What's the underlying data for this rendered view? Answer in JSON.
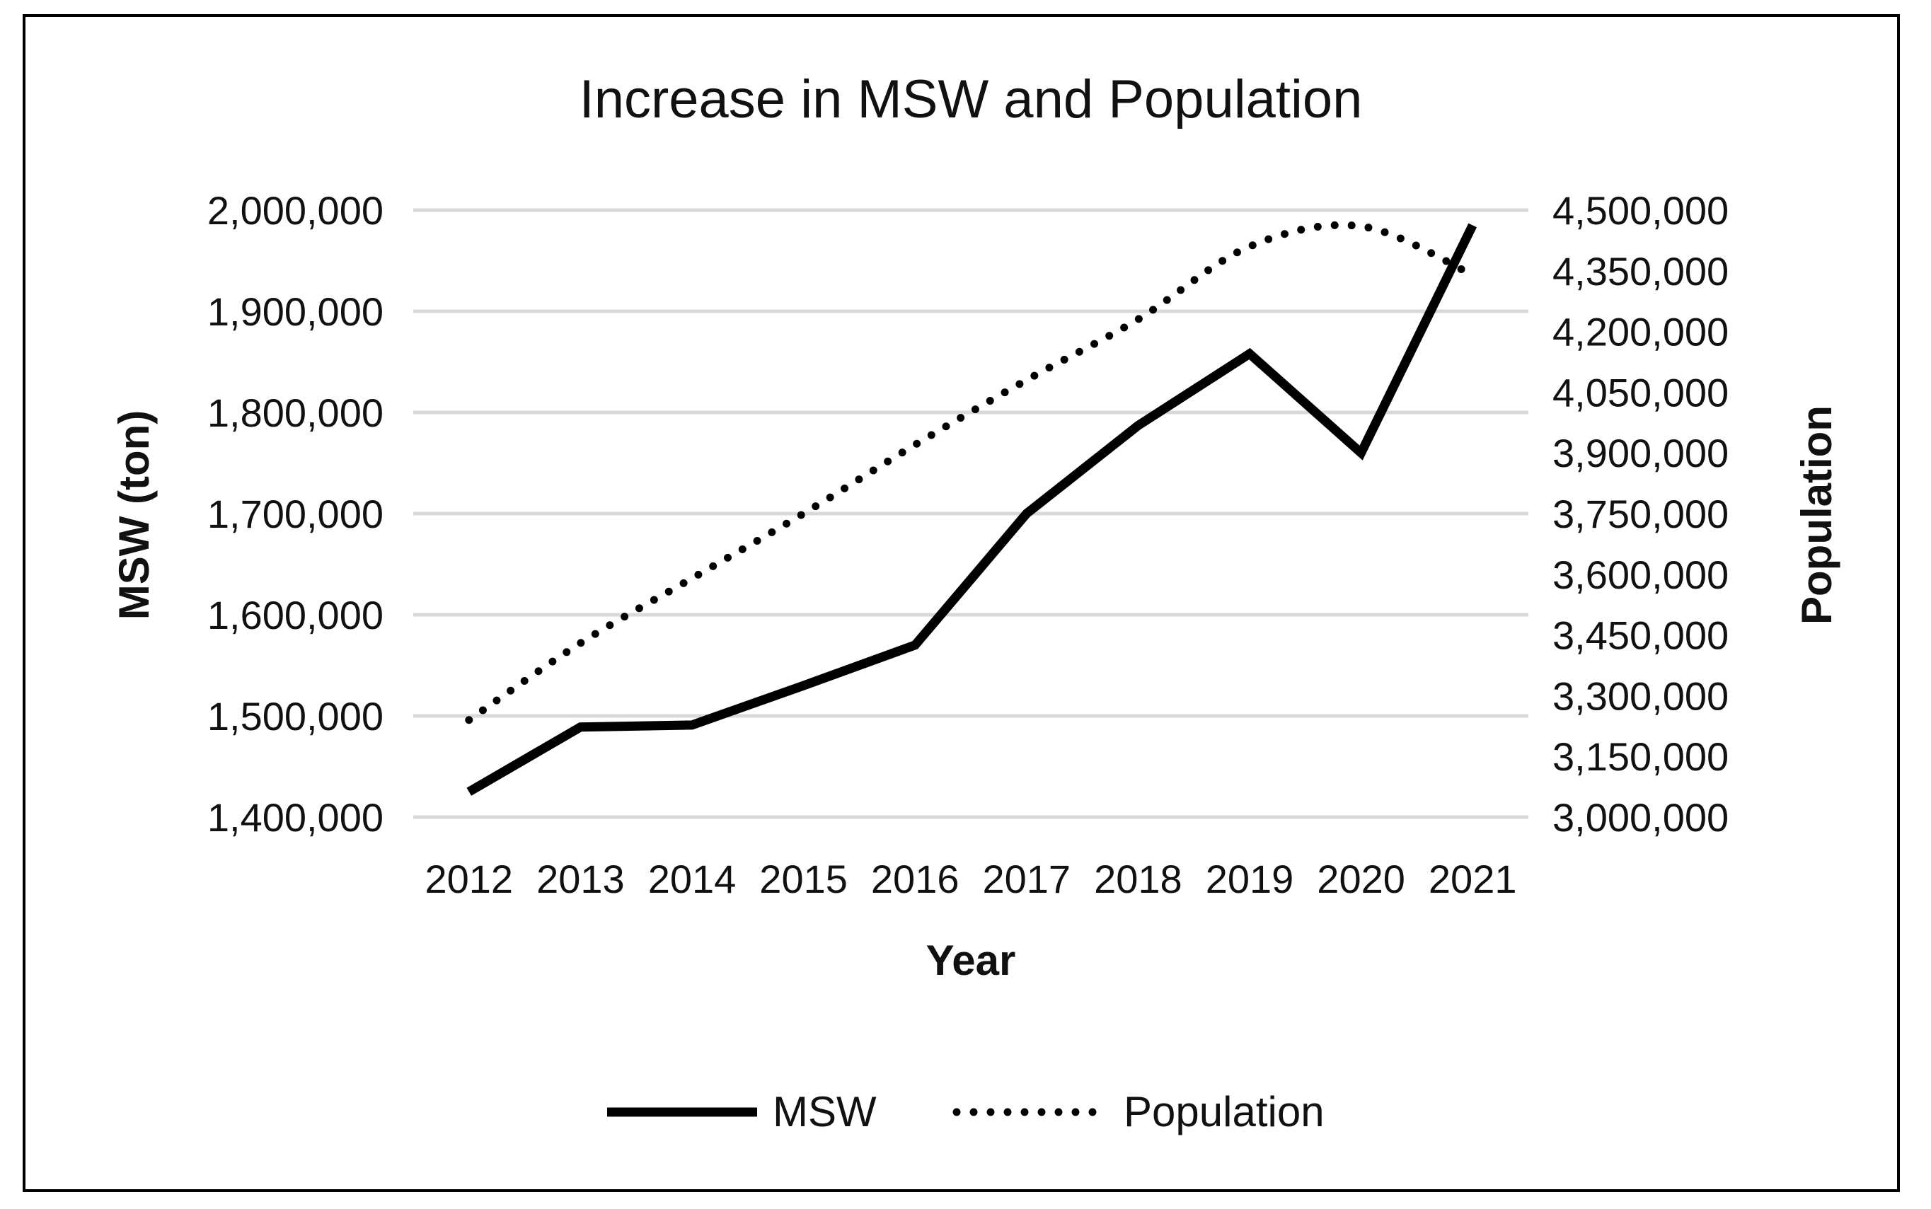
{
  "chart_data": {
    "type": "line",
    "title": "Increase in MSW and Population",
    "xlabel": "Year",
    "ylabel": "MSW (ton)",
    "y2label": "Population",
    "categories": [
      "2012",
      "2013",
      "2014",
      "2015",
      "2016",
      "2017",
      "2018",
      "2019",
      "2020",
      "2021"
    ],
    "ylim": [
      1400000,
      2000000
    ],
    "y_ticks": [
      1400000,
      1500000,
      1600000,
      1700000,
      1800000,
      1900000,
      2000000
    ],
    "y_tick_labels": [
      "1,400,000",
      "1,500,000",
      "1,600,000",
      "1,700,000",
      "1,800,000",
      "1,900,000",
      "2,000,000"
    ],
    "y2lim": [
      3000000,
      4500000
    ],
    "y2_ticks": [
      3000000,
      3150000,
      3300000,
      3450000,
      3600000,
      3750000,
      3900000,
      4050000,
      4200000,
      4350000,
      4500000
    ],
    "y2_tick_labels": [
      "3,000,000",
      "3,150,000",
      "3,300,000",
      "3,450,000",
      "3,600,000",
      "3,750,000",
      "3,900,000",
      "4,050,000",
      "4,200,000",
      "4,350,000",
      "4,500,000"
    ],
    "series": [
      {
        "name": "MSW",
        "axis": "left",
        "style": "solid",
        "values": [
          1425000,
          1489000,
          1491000,
          1530000,
          1570000,
          1700000,
          1787000,
          1858000,
          1760000,
          1985000
        ]
      },
      {
        "name": "Population",
        "axis": "right",
        "style": "dotted",
        "values": [
          3240000,
          3430000,
          3590000,
          3750000,
          3920000,
          4080000,
          4230000,
          4410000,
          4460000,
          4340000
        ]
      }
    ],
    "legend_position": "bottom",
    "grid": true,
    "colors": {
      "line": "#000000",
      "grid": "#d9d9d9",
      "text": "#111111"
    }
  }
}
